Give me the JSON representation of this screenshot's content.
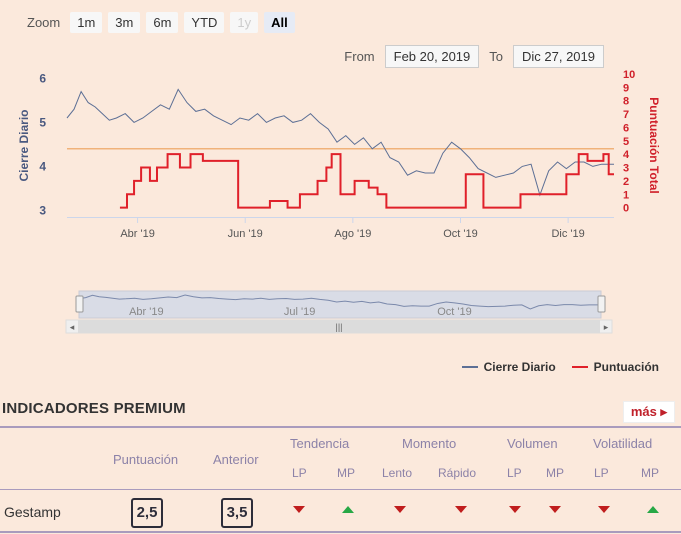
{
  "zoom": {
    "label": "Zoom",
    "buttons": [
      {
        "label": "1m",
        "state": "normal"
      },
      {
        "label": "3m",
        "state": "normal"
      },
      {
        "label": "6m",
        "state": "normal"
      },
      {
        "label": "YTD",
        "state": "normal"
      },
      {
        "label": "1y",
        "state": "disabled"
      },
      {
        "label": "All",
        "state": "active"
      }
    ]
  },
  "range": {
    "from_label": "From",
    "from_value": "Feb 20, 2019",
    "to_label": "To",
    "to_value": "Dic 27, 2019"
  },
  "chart_data": {
    "type": "line",
    "ylabel_left": "Cierre Diario",
    "ylabel_right": "Puntuación Total",
    "left_ticks": [
      "3",
      "4",
      "5",
      "6"
    ],
    "left_ylim": [
      2.85,
      6.1
    ],
    "right_ticks": [
      "0",
      "1",
      "2",
      "3",
      "4",
      "5",
      "6",
      "7",
      "8",
      "9",
      "10"
    ],
    "right_ylim": [
      -0.7,
      10
    ],
    "x_ticks": [
      "Abr '19",
      "Jun '19",
      "Ago '19",
      "Oct '19",
      "Dic '19"
    ],
    "x_tick_dates": [
      "2019-04-01",
      "2019-06-01",
      "2019-08-01",
      "2019-10-01",
      "2019-12-01"
    ],
    "reference_line": 4.4,
    "legend_position": "bottom-right",
    "series": [
      {
        "name": "Cierre Diario",
        "color": "#5c6f95",
        "x": [
          "2019-02-20",
          "2019-02-24",
          "2019-02-28",
          "2019-03-04",
          "2019-03-08",
          "2019-03-12",
          "2019-03-16",
          "2019-03-20",
          "2019-03-25",
          "2019-03-30",
          "2019-04-04",
          "2019-04-09",
          "2019-04-14",
          "2019-04-19",
          "2019-04-24",
          "2019-04-29",
          "2019-05-04",
          "2019-05-09",
          "2019-05-14",
          "2019-05-19",
          "2019-05-24",
          "2019-05-29",
          "2019-06-03",
          "2019-06-08",
          "2019-06-13",
          "2019-06-18",
          "2019-06-23",
          "2019-06-28",
          "2019-07-03",
          "2019-07-08",
          "2019-07-13",
          "2019-07-18",
          "2019-07-23",
          "2019-07-28",
          "2019-08-02",
          "2019-08-07",
          "2019-08-12",
          "2019-08-17",
          "2019-08-22",
          "2019-08-27",
          "2019-09-01",
          "2019-09-06",
          "2019-09-11",
          "2019-09-16",
          "2019-09-21",
          "2019-09-26",
          "2019-10-01",
          "2019-10-06",
          "2019-10-11",
          "2019-10-16",
          "2019-10-21",
          "2019-10-26",
          "2019-10-31",
          "2019-11-05",
          "2019-11-10",
          "2019-11-15",
          "2019-11-20",
          "2019-11-25",
          "2019-11-30",
          "2019-12-05",
          "2019-12-10",
          "2019-12-15",
          "2019-12-20",
          "2019-12-27"
        ],
        "values": [
          5.1,
          5.3,
          5.7,
          5.45,
          5.35,
          5.2,
          5.05,
          5.1,
          5.2,
          5.0,
          5.1,
          5.25,
          5.4,
          5.3,
          5.75,
          5.45,
          5.25,
          5.3,
          5.15,
          5.05,
          4.95,
          5.1,
          5.05,
          5.2,
          5.0,
          5.1,
          5.15,
          5.0,
          5.05,
          5.2,
          5.0,
          4.85,
          4.55,
          4.7,
          4.5,
          4.65,
          4.4,
          4.55,
          4.2,
          4.1,
          3.8,
          3.9,
          3.85,
          3.85,
          4.3,
          4.55,
          4.4,
          4.2,
          3.95,
          3.85,
          3.75,
          3.8,
          3.85,
          4.0,
          4.05,
          3.35,
          3.9,
          4.1,
          3.95,
          4.1,
          4.1,
          4.0,
          4.05,
          4.05
        ]
      },
      {
        "name": "Puntuación",
        "color": "#e0202a",
        "x": [
          "2019-02-20",
          "2019-03-22",
          "2019-03-26",
          "2019-03-30",
          "2019-04-03",
          "2019-04-08",
          "2019-04-12",
          "2019-04-18",
          "2019-04-25",
          "2019-05-01",
          "2019-05-08",
          "2019-05-28",
          "2019-06-15",
          "2019-06-25",
          "2019-07-02",
          "2019-07-12",
          "2019-07-17",
          "2019-07-20",
          "2019-07-25",
          "2019-08-02",
          "2019-08-10",
          "2019-08-15",
          "2019-08-20",
          "2019-10-04",
          "2019-10-14",
          "2019-10-21",
          "2019-11-04",
          "2019-11-30",
          "2019-12-07",
          "2019-12-12",
          "2019-12-16",
          "2019-12-21",
          "2019-12-24",
          "2019-12-27"
        ],
        "values": [
          null,
          0,
          1,
          2,
          3,
          2,
          3,
          4,
          3,
          4,
          3.5,
          0,
          0.5,
          0,
          1,
          2,
          3,
          4,
          1,
          2,
          1.5,
          1,
          0,
          2.5,
          0,
          0,
          1,
          2.5,
          4,
          3.5,
          3.5,
          4,
          2.5,
          2.5
        ]
      }
    ]
  },
  "legend": {
    "item1": "Cierre Diario",
    "item2": "Puntuación"
  },
  "premium": {
    "title": "INDICADORES PREMIUM",
    "more": "más ▸",
    "headers": {
      "puntuacion": "Puntuación",
      "anterior": "Anterior",
      "tendencia": "Tendencia",
      "momento": "Momento",
      "volumen": "Volumen",
      "volatilidad": "Volatilidad"
    },
    "subheaders": {
      "lp1": "LP",
      "mp1": "MP",
      "lento": "Lento",
      "rapido": "Rápido",
      "lp2": "LP",
      "mp2": "MP",
      "lp3": "LP",
      "mp3": "MP"
    },
    "row": {
      "company": "Gestamp",
      "puntuacion": "2,5",
      "anterior": "3,5",
      "indicators": [
        "down",
        "up",
        "down",
        "down",
        "down",
        "down",
        "down",
        "up"
      ]
    }
  },
  "navigator_ticks": [
    "Abr '19",
    "Jul '19",
    "Oct '19"
  ],
  "colors": {
    "reference_line": "#f0b27a",
    "down": "#c01d1d",
    "up": "#27a846",
    "rule": "#a99bbd"
  }
}
